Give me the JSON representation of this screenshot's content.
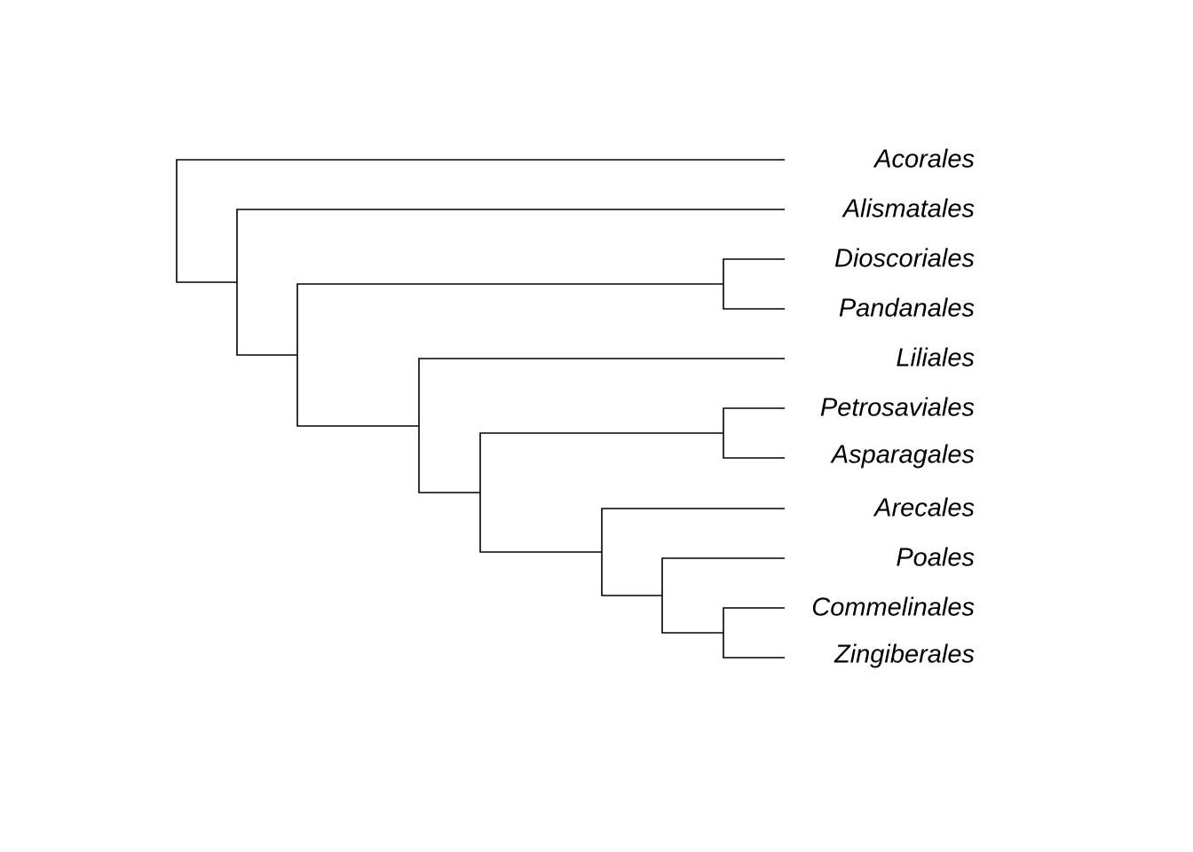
{
  "leaves": [
    "Acorales",
    "Alismatales",
    "Dioscoriales",
    "Pandanales",
    "Liliales",
    "Petrosaviales",
    "Asparagales",
    "Arecales",
    "Poales",
    "Commelinales",
    "Zingiberales"
  ]
}
